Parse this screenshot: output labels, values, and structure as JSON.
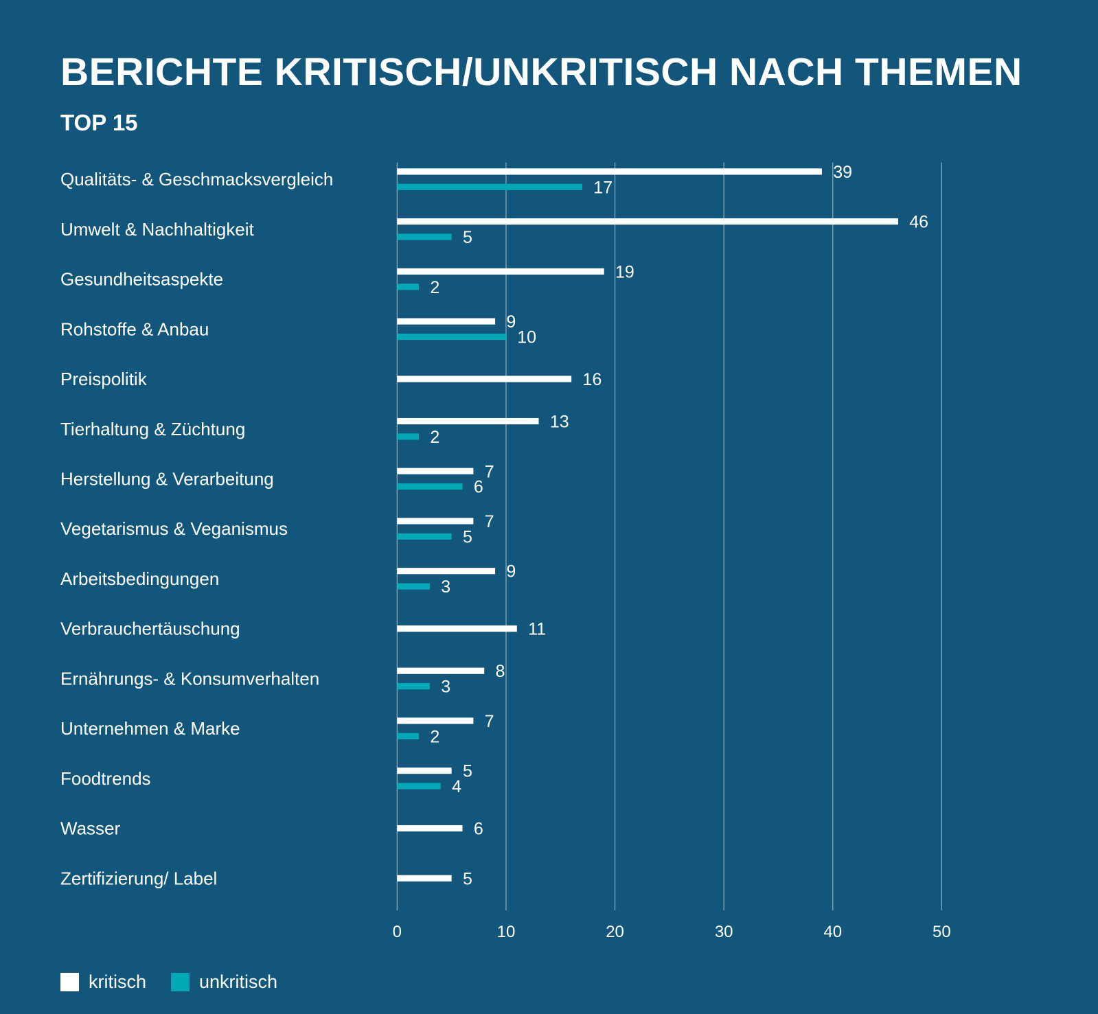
{
  "header": {
    "title": "BERICHTE KRITISCH/UNKRITISCH NACH THEMEN",
    "subtitle": "TOP 15"
  },
  "colors": {
    "background": "#13567b",
    "kritisch": "#ffffff",
    "unkritisch": "#00a9b5",
    "gridline": "#8fb0c4"
  },
  "legend": {
    "items": [
      {
        "label": "kritisch",
        "color": "#ffffff"
      },
      {
        "label": "unkritisch",
        "color": "#00a9b5"
      }
    ]
  },
  "chart_data": {
    "type": "bar",
    "orientation": "horizontal",
    "title": "BERICHTE KRITISCH/UNKRITISCH NACH THEMEN",
    "subtitle": "TOP 15",
    "xlabel": "",
    "ylabel": "",
    "xlim": [
      0,
      50
    ],
    "xticks": [
      0,
      10,
      20,
      30,
      40,
      50
    ],
    "grid": true,
    "legend_position": "bottom-left",
    "categories": [
      "Qualitäts- & Geschmacksvergleich",
      "Umwelt & Nachhaltigkeit",
      "Gesundheitsaspekte",
      "Rohstoffe & Anbau",
      "Preispolitik",
      "Tierhaltung & Züchtung",
      "Herstellung & Verarbeitung",
      "Vegetarismus & Veganismus",
      "Arbeitsbedingungen",
      "Verbrauchertäuschung",
      "Ernährungs- & Konsumverhalten",
      "Unternehmen & Marke",
      "Foodtrends",
      "Wasser",
      "Zertifizierung/ Label"
    ],
    "series": [
      {
        "name": "kritisch",
        "color": "#ffffff",
        "values": [
          39,
          46,
          19,
          9,
          16,
          13,
          7,
          7,
          9,
          11,
          8,
          7,
          5,
          6,
          5
        ]
      },
      {
        "name": "unkritisch",
        "color": "#00a9b5",
        "values": [
          17,
          5,
          2,
          10,
          null,
          2,
          6,
          5,
          3,
          null,
          3,
          2,
          4,
          null,
          null
        ]
      }
    ]
  }
}
